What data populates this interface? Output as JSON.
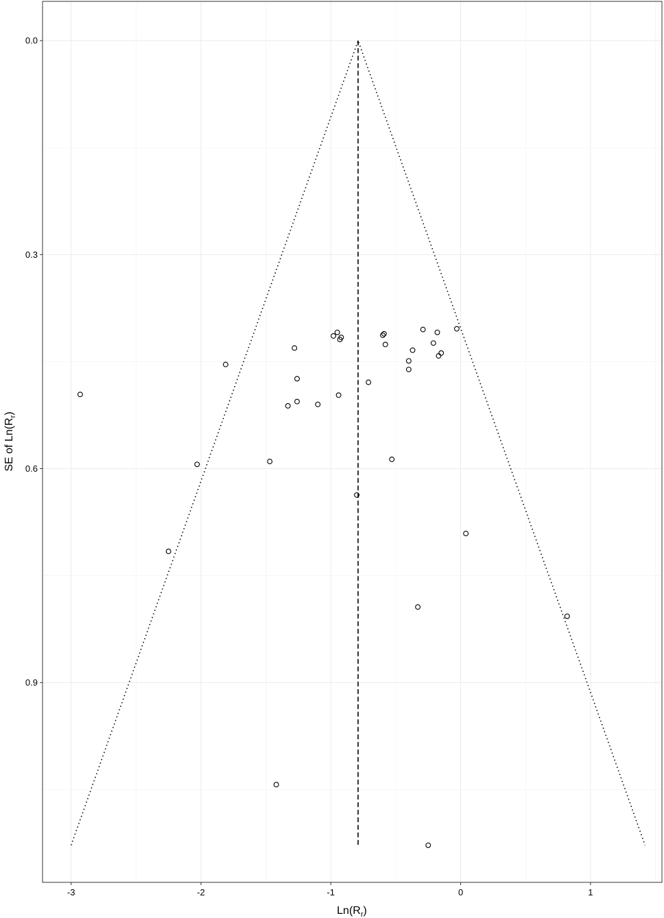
{
  "chart_data": {
    "type": "scatter",
    "title": "",
    "xlabel": "Ln(R",
    "xlabel_sub": "r",
    "xlabel_close": ")",
    "ylabel": "SE of Ln(R",
    "ylabel_sub": "r",
    "ylabel_close": ")",
    "xlim": [
      -3.22,
      1.55
    ],
    "ylim": [
      1.18,
      -0.055
    ],
    "y_reversed": true,
    "grid": true,
    "x_ticks": [
      -3,
      -2,
      -1,
      0,
      1
    ],
    "y_ticks": [
      0.0,
      0.3,
      0.6,
      0.9
    ],
    "x_tick_labels": [
      "-3",
      "-2",
      "-1",
      "0",
      "1"
    ],
    "y_tick_labels": [
      "0.0",
      "0.3",
      "0.6",
      "0.9"
    ],
    "pooled_estimate": -0.79,
    "funnel": {
      "apex": [
        -0.79,
        0.0
      ],
      "left_base": [
        -3.0,
        1.128
      ],
      "right_base": [
        1.42,
        1.128
      ]
    },
    "points": [
      {
        "x": -2.93,
        "y": 0.496
      },
      {
        "x": -2.25,
        "y": 0.716
      },
      {
        "x": -2.03,
        "y": 0.594
      },
      {
        "x": -1.81,
        "y": 0.454
      },
      {
        "x": -1.47,
        "y": 0.59
      },
      {
        "x": -1.42,
        "y": 1.043
      },
      {
        "x": -1.33,
        "y": 0.512
      },
      {
        "x": -1.28,
        "y": 0.431
      },
      {
        "x": -1.26,
        "y": 0.474
      },
      {
        "x": -1.26,
        "y": 0.506
      },
      {
        "x": -1.1,
        "y": 0.51
      },
      {
        "x": -0.98,
        "y": 0.414
      },
      {
        "x": -0.95,
        "y": 0.409
      },
      {
        "x": -0.93,
        "y": 0.419
      },
      {
        "x": -0.92,
        "y": 0.416
      },
      {
        "x": -0.94,
        "y": 0.497
      },
      {
        "x": -0.8,
        "y": 0.637
      },
      {
        "x": -0.71,
        "y": 0.479
      },
      {
        "x": -0.6,
        "y": 0.413
      },
      {
        "x": -0.59,
        "y": 0.411
      },
      {
        "x": -0.58,
        "y": 0.426
      },
      {
        "x": -0.53,
        "y": 0.587
      },
      {
        "x": -0.4,
        "y": 0.449
      },
      {
        "x": -0.4,
        "y": 0.461
      },
      {
        "x": -0.37,
        "y": 0.434
      },
      {
        "x": -0.33,
        "y": 0.794
      },
      {
        "x": -0.29,
        "y": 0.405
      },
      {
        "x": -0.21,
        "y": 0.424
      },
      {
        "x": -0.18,
        "y": 0.409
      },
      {
        "x": -0.17,
        "y": 0.442
      },
      {
        "x": -0.15,
        "y": 0.438
      },
      {
        "x": -0.25,
        "y": 1.128
      },
      {
        "x": -0.03,
        "y": 0.404
      },
      {
        "x": 0.04,
        "y": 0.691
      },
      {
        "x": 0.82,
        "y": 0.807
      }
    ]
  }
}
